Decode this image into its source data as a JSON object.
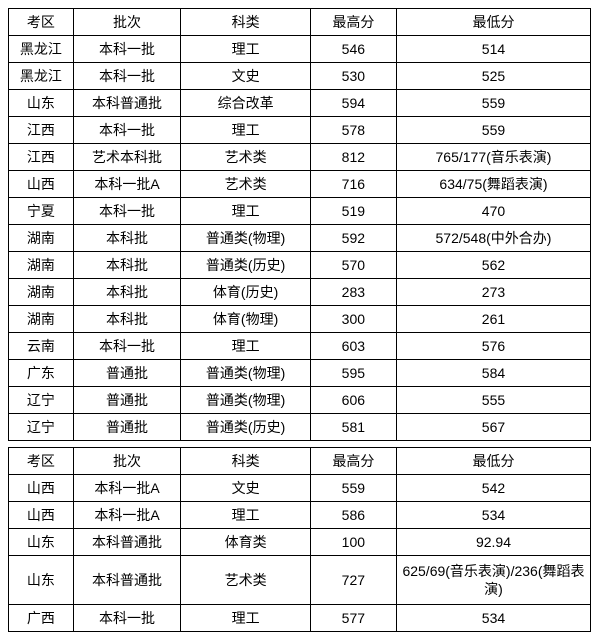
{
  "table1": {
    "columns": [
      "考区",
      "批次",
      "科类",
      "最高分",
      "最低分"
    ],
    "rows": [
      [
        "黑龙江",
        "本科一批",
        "理工",
        "546",
        "514"
      ],
      [
        "黑龙江",
        "本科一批",
        "文史",
        "530",
        "525"
      ],
      [
        "山东",
        "本科普通批",
        "综合改革",
        "594",
        "559"
      ],
      [
        "江西",
        "本科一批",
        "理工",
        "578",
        "559"
      ],
      [
        "江西",
        "艺术本科批",
        "艺术类",
        "812",
        "765/177(音乐表演)"
      ],
      [
        "山西",
        "本科一批A",
        "艺术类",
        "716",
        "634/75(舞蹈表演)"
      ],
      [
        "宁夏",
        "本科一批",
        "理工",
        "519",
        "470"
      ],
      [
        "湖南",
        "本科批",
        "普通类(物理)",
        "592",
        "572/548(中外合办)"
      ],
      [
        "湖南",
        "本科批",
        "普通类(历史)",
        "570",
        "562"
      ],
      [
        "湖南",
        "本科批",
        "体育(历史)",
        "283",
        "273"
      ],
      [
        "湖南",
        "本科批",
        "体育(物理)",
        "300",
        "261"
      ],
      [
        "云南",
        "本科一批",
        "理工",
        "603",
        "576"
      ],
      [
        "广东",
        "普通批",
        "普通类(物理)",
        "595",
        "584"
      ],
      [
        "辽宁",
        "普通批",
        "普通类(物理)",
        "606",
        "555"
      ],
      [
        "辽宁",
        "普通批",
        "普通类(历史)",
        "581",
        "567"
      ]
    ]
  },
  "table2": {
    "columns": [
      "考区",
      "批次",
      "科类",
      "最高分",
      "最低分"
    ],
    "rows": [
      [
        "山西",
        "本科一批A",
        "文史",
        "559",
        "542"
      ],
      [
        "山西",
        "本科一批A",
        "理工",
        "586",
        "534"
      ],
      [
        "山东",
        "本科普通批",
        "体育类",
        "100",
        "92.94"
      ],
      [
        "山东",
        "本科普通批",
        "艺术类",
        "727",
        "625/69(音乐表演)/236(舞蹈表演)"
      ],
      [
        "广西",
        "本科一批",
        "理工",
        "577",
        "534"
      ]
    ],
    "tallRowIndex": 3
  },
  "colors": {
    "border": "#000000",
    "background": "#ffffff",
    "text": "#000000"
  }
}
